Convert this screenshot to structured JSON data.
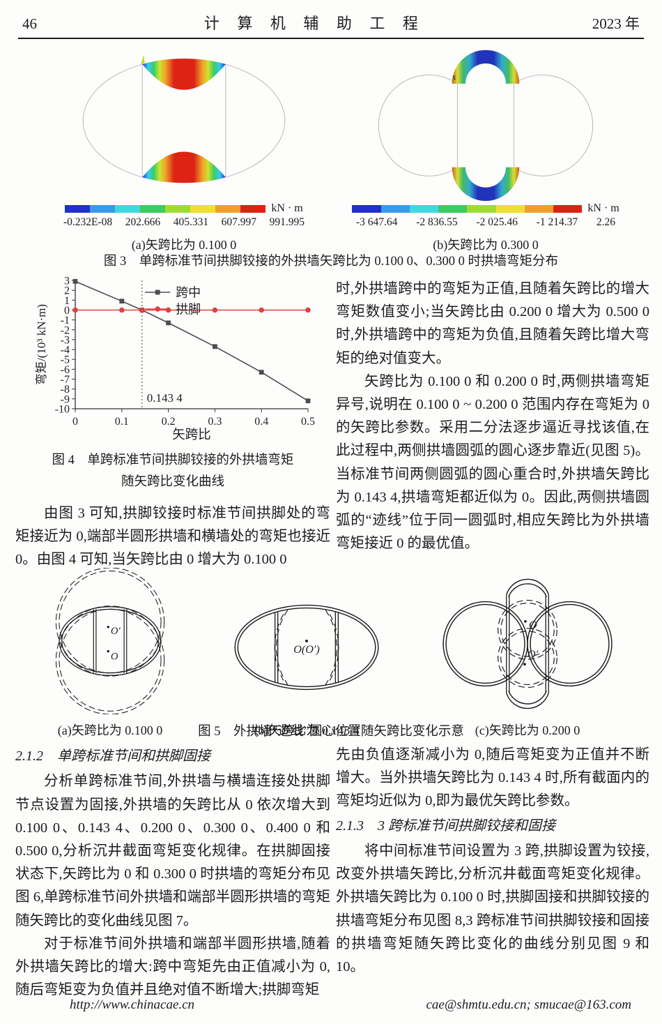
{
  "header": {
    "page_number": "46",
    "journal_title": "计  算  机  辅  助  工  程",
    "year": "2023 年"
  },
  "figure3": {
    "caption": "图 3　单跨标准节间拱脚铰接的外拱墙矢跨比为 0.100 0、0.300 0 时拱墙弯矩分布",
    "panel_a": {
      "caption": "(a)矢跨比为 0.100 0",
      "unit": "kN · m",
      "colors": [
        "#2230cc",
        "#3a9ae8",
        "#40d8e0",
        "#3ecb62",
        "#9edc33",
        "#f0e02a",
        "#f09f2e",
        "#dd2414"
      ],
      "colorbar_labels": [
        "-0.232E-08",
        "202.666",
        "405.331",
        "607.997",
        "991.995"
      ]
    },
    "panel_b": {
      "caption": "(b)矢跨比为 0.300 0",
      "unit": "kN · m",
      "axis_marker": "x",
      "colors": [
        "#2230cc",
        "#3a9ae8",
        "#40d8e0",
        "#3ecb62",
        "#9edc33",
        "#f0e02a",
        "#f09f2e",
        "#dd2414"
      ],
      "colorbar_labels": [
        "-3 647.64",
        "-2 836.55",
        "-2 025.46",
        "-1 214.37",
        "2.26"
      ]
    }
  },
  "chart_data": {
    "type": "line",
    "xlabel": "矢跨比",
    "ylabel": "弯矩/(10³ kN·m)",
    "xlim": [
      0,
      0.5
    ],
    "ylim": [
      -10,
      3
    ],
    "xticks": [
      0,
      0.1,
      0.2,
      0.3,
      0.4,
      0.5
    ],
    "yticks": [
      3,
      2,
      1,
      0,
      -1,
      -2,
      -3,
      -4,
      -5,
      -6,
      -7,
      -8,
      -9,
      -10
    ],
    "grid": false,
    "legend_position": "top-center-inside",
    "series": [
      {
        "name": "跨中",
        "color": "#4d4d4d",
        "marker": "square",
        "x": [
          0,
          0.1,
          0.1434,
          0.2,
          0.3,
          0.4,
          0.5
        ],
        "y": [
          2.9,
          0.9,
          0,
          -1.3,
          -3.7,
          -6.3,
          -9.2
        ]
      },
      {
        "name": "拱脚",
        "color": "#e2403c",
        "marker": "circle",
        "x": [
          0,
          0.1,
          0.1434,
          0.2,
          0.3,
          0.4,
          0.5
        ],
        "y": [
          0,
          0,
          0,
          0,
          0,
          0,
          0
        ]
      }
    ],
    "vline": {
      "x": 0.1434,
      "label": "0.143 4"
    }
  },
  "figure4": {
    "caption_line1": "图 4　单跨标准节间拱脚铰接的外拱墙弯矩",
    "caption_line2": "随矢跨比变化曲线"
  },
  "text": {
    "left_mid_p1": "由图 3 可知,拱脚铰接时标准节间拱脚处的弯矩接近为 0,端部半圆形拱墙和横墙处的弯矩也接近 0。由图 4 可知,当矢跨比由 0 增大为 0.100 0",
    "right_top_p1": "时,外拱墙跨中的弯矩为正值,且随着矢跨比的增大弯矩数值变小;当矢跨比由 0.200 0 增大为 0.500 0 时,外拱墙跨中的弯矩为负值,且随着矢跨比增大弯矩的绝对值变大。",
    "right_top_p2": "矢跨比为 0.100 0 和 0.200 0 时,两侧拱墙弯矩异号,说明在 0.100 0 ~ 0.200 0 范围内存在弯矩为 0 的矢跨比参数。采用二分法逐步逼近寻找该值,在此过程中,两侧拱墙圆弧的圆心逐步靠近(见图 5)。当标准节间两侧圆弧的圆心重合时,外拱墙矢跨比为 0.143 4,拱墙弯矩都近似为 0。因此,两侧拱墙圆弧的“迹线”位于同一圆弧时,相应矢跨比为外拱墙弯矩接近 0 的最优值。",
    "sec212_heading": "2.1.2　单跨标准节间和拱脚固接",
    "sec212_p1": "分析单跨标准节间,外拱墙与横墙连接处拱脚节点设置为固接,外拱墙的矢跨比从 0 依次增大到 0.100 0、0.143 4、0.200 0、0.300 0、0.400 0 和 0.500 0,分析沉井截面弯矩变化规律。在拱脚固接状态下,矢跨比为 0 和 0.300 0 时拱墙的弯矩分布见图 6,单跨标准节间外拱墙和端部半圆形拱墙的弯矩随矢跨比的变化曲线见图 7。",
    "sec212_p2": "对于标准节间外拱墙和端部半圆形拱墙,随着外拱墙矢跨比的增大:跨中弯矩先由正值减小为 0,随后弯矩变为负值并且绝对值不断增大;拱脚弯矩",
    "right_bot_p1": "先由负值逐渐减小为 0,随后弯矩变为正值并不断增大。当外拱墙矢跨比为 0.143 4 时,所有截面内的弯矩均近似为 0,即为最优矢跨比参数。",
    "sec213_heading": "2.1.3　3 跨标准节间拱脚铰接和固接",
    "sec213_p1": "将中间标准节间设置为 3 跨,拱脚设置为铰接,改变外拱墙矢跨比,分析沉井截面弯矩变化规律。外拱墙矢跨比为 0.100 0 时,拱脚固接和拱脚铰接的拱墙弯矩分布见图 8,3 跨标准节间拱脚铰接和固接的拱墙弯矩随矢跨比变化的曲线分别见图 9 和 10。"
  },
  "figure5": {
    "caption": "图 5　外拱墙“迹线”圆心位置随矢跨比变化示意",
    "panel_a": {
      "caption": "(a)矢跨比为 0.100 0",
      "label_top": "O′",
      "label_bottom": "O"
    },
    "panel_b": {
      "caption": "(b)矢跨比为 0.143 4",
      "label_center": "O(O′)"
    },
    "panel_c": {
      "caption": "(c)矢跨比为 0.200 0",
      "label_top": "O",
      "label_bottom": "O′"
    }
  },
  "footer": {
    "left": "http://www.chinacae.cn",
    "right": "cae@shmtu.edu.cn; smucae@163.com"
  }
}
